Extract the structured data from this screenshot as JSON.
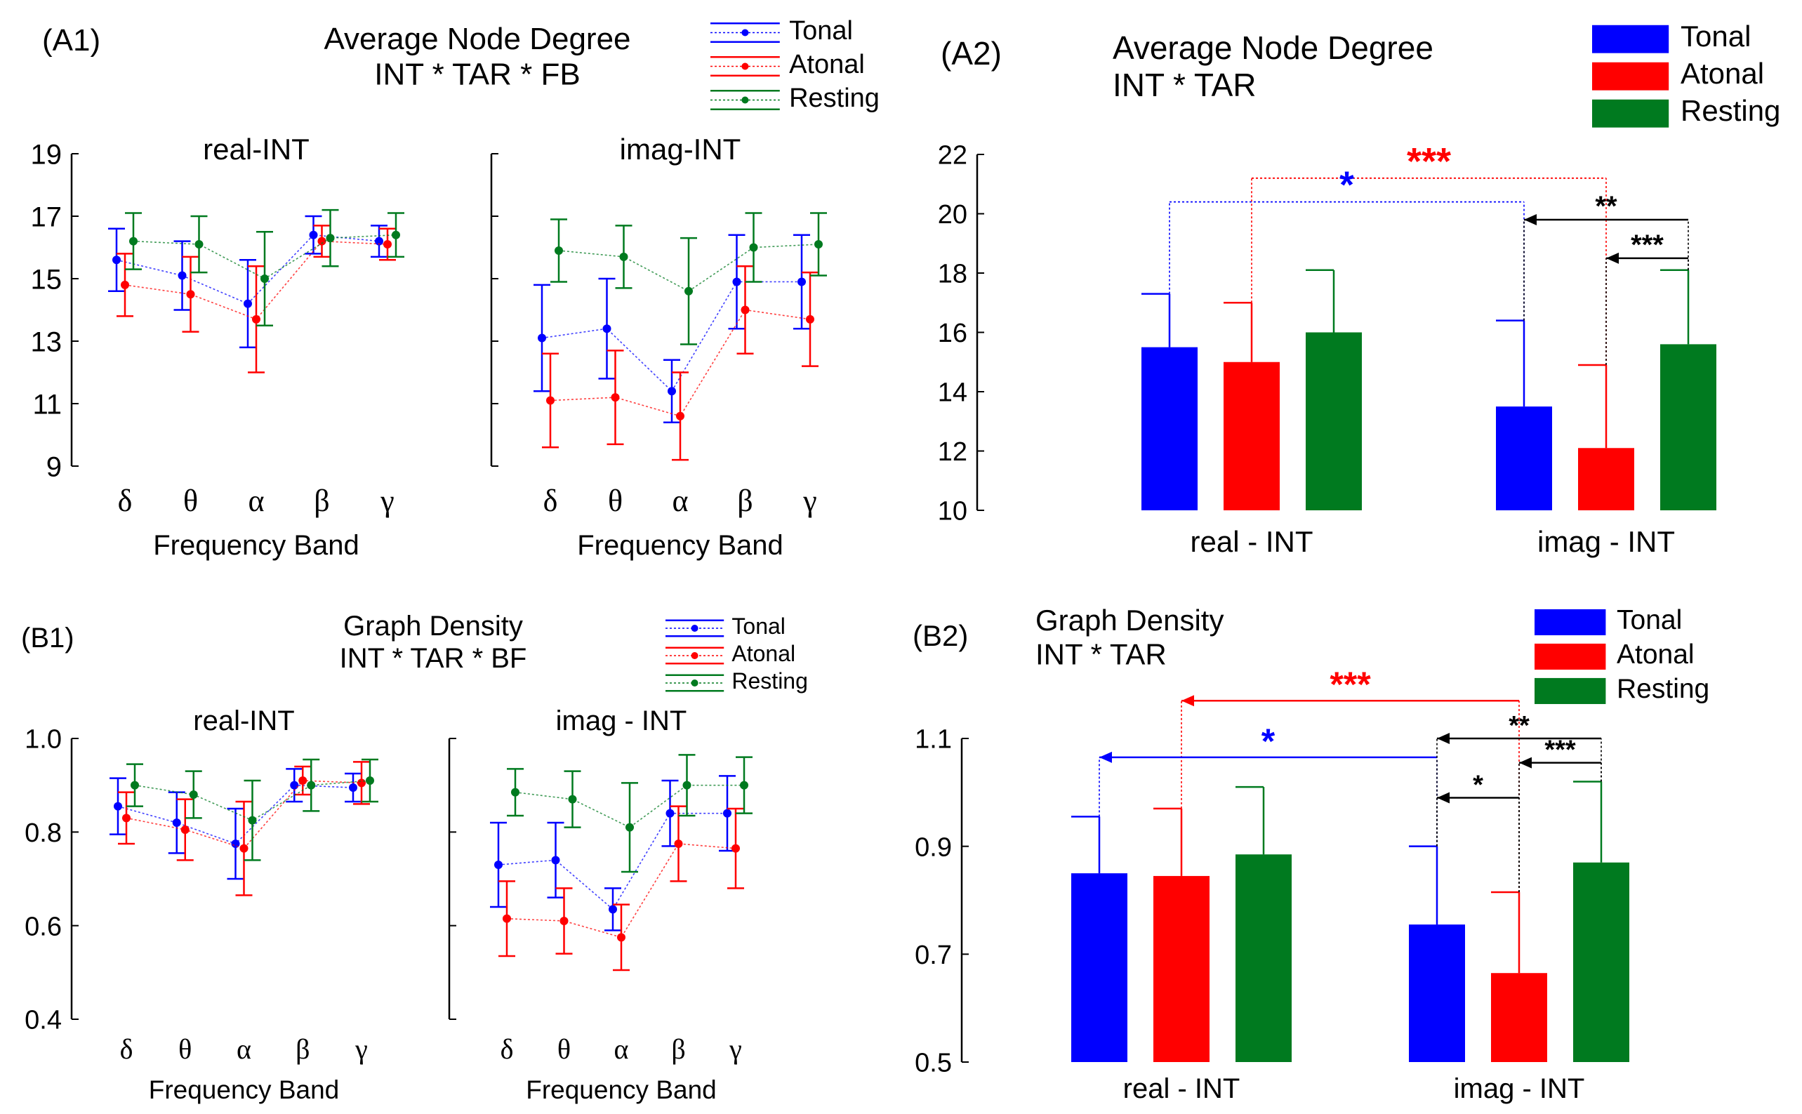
{
  "colors": {
    "tonal": "#0000ff",
    "atonal": "#ff0000",
    "resting": "#007a1f",
    "axis": "#000000"
  },
  "chart_data": [
    {
      "id": "A1",
      "type": "line",
      "panel_label": "(A1)",
      "title_lines": [
        "Average Node Degree",
        "INT * TAR * FB"
      ],
      "legend": [
        "Tonal",
        "Atonal",
        "Resting"
      ],
      "legend_placement": "top-right",
      "ylim": [
        9,
        19
      ],
      "yticks": [
        "19",
        "17",
        "15",
        "13",
        "11",
        "9"
      ],
      "grid": false,
      "subplots": [
        {
          "subtitle": "real-INT",
          "xlabel": "Frequency Band",
          "categories": [
            "δ",
            "θ",
            "α",
            "β",
            "γ"
          ],
          "series": [
            {
              "name": "Tonal",
              "values": [
                15.6,
                15.1,
                14.2,
                16.4,
                16.2
              ],
              "err": [
                1.0,
                1.1,
                1.4,
                0.6,
                0.5
              ]
            },
            {
              "name": "Atonal",
              "values": [
                14.8,
                14.5,
                13.7,
                16.2,
                16.1
              ],
              "err": [
                1.0,
                1.2,
                1.7,
                0.5,
                0.5
              ]
            },
            {
              "name": "Resting",
              "values": [
                16.2,
                16.1,
                15.0,
                16.3,
                16.4
              ],
              "err": [
                0.9,
                0.9,
                1.5,
                0.9,
                0.7
              ]
            }
          ]
        },
        {
          "subtitle": "imag-INT",
          "xlabel": "Frequency Band",
          "categories": [
            "δ",
            "θ",
            "α",
            "β",
            "γ"
          ],
          "series": [
            {
              "name": "Tonal",
              "values": [
                13.1,
                13.4,
                11.4,
                14.9,
                14.9
              ],
              "err": [
                1.7,
                1.6,
                1.0,
                1.5,
                1.5
              ]
            },
            {
              "name": "Atonal",
              "values": [
                11.1,
                11.2,
                10.6,
                14.0,
                13.7
              ],
              "err": [
                1.5,
                1.5,
                1.4,
                1.4,
                1.5
              ]
            },
            {
              "name": "Resting",
              "values": [
                15.9,
                15.7,
                14.6,
                16.0,
                16.1
              ],
              "err": [
                1.0,
                1.0,
                1.7,
                1.1,
                1.0
              ]
            }
          ]
        }
      ]
    },
    {
      "id": "A2",
      "type": "bar",
      "panel_label": "(A2)",
      "title_lines": [
        "Average Node Degree",
        "INT * TAR"
      ],
      "legend": [
        "Tonal",
        "Atonal",
        "Resting"
      ],
      "legend_placement": "top-right",
      "categories": [
        "real - INT",
        "imag - INT"
      ],
      "ylim": [
        10,
        22
      ],
      "yticks": [
        "22",
        "20",
        "18",
        "16",
        "14",
        "12",
        "10"
      ],
      "grid": false,
      "series": [
        {
          "name": "Tonal",
          "values": [
            15.5,
            13.5
          ],
          "err": [
            1.8,
            2.9
          ]
        },
        {
          "name": "Atonal",
          "values": [
            15.0,
            12.1
          ],
          "err": [
            2.0,
            2.8
          ]
        },
        {
          "name": "Resting",
          "values": [
            16.0,
            15.6
          ],
          "err": [
            2.1,
            2.5
          ]
        }
      ],
      "annotations": [
        {
          "text": "***",
          "color": "atonal",
          "from": [
            0,
            1
          ],
          "to": [
            1,
            1
          ],
          "y": 21.2,
          "style": "bracket"
        },
        {
          "text": "*",
          "color": "tonal",
          "from": [
            0,
            0
          ],
          "to": [
            1,
            0
          ],
          "y": 20.4,
          "style": "bracket"
        },
        {
          "text": "**",
          "color": "black",
          "from": [
            1,
            2
          ],
          "to": [
            1,
            0
          ],
          "y": 19.8,
          "style": "arrow"
        },
        {
          "text": "***",
          "color": "black",
          "from": [
            1,
            2
          ],
          "to": [
            1,
            1
          ],
          "y": 18.5,
          "style": "arrow"
        }
      ]
    },
    {
      "id": "B1",
      "type": "line",
      "panel_label": "(B1)",
      "title_lines": [
        "Graph Density",
        "INT * TAR * BF"
      ],
      "legend": [
        "Tonal",
        "Atonal",
        "Resting"
      ],
      "legend_placement": "top-right",
      "ylim": [
        0.4,
        1.0
      ],
      "yticks": [
        "1.0",
        "0.8",
        "0.6",
        "0.4"
      ],
      "grid": false,
      "subplots": [
        {
          "subtitle": "real-INT",
          "xlabel": "Frequency Band",
          "categories": [
            "δ",
            "θ",
            "α",
            "β",
            "γ"
          ],
          "series": [
            {
              "name": "Tonal",
              "values": [
                0.855,
                0.82,
                0.775,
                0.9,
                0.895
              ],
              "err": [
                0.06,
                0.065,
                0.075,
                0.035,
                0.03
              ]
            },
            {
              "name": "Atonal",
              "values": [
                0.83,
                0.805,
                0.765,
                0.91,
                0.905
              ],
              "err": [
                0.055,
                0.065,
                0.1,
                0.03,
                0.045
              ]
            },
            {
              "name": "Resting",
              "values": [
                0.9,
                0.88,
                0.825,
                0.9,
                0.91
              ],
              "err": [
                0.045,
                0.05,
                0.085,
                0.055,
                0.045
              ]
            }
          ]
        },
        {
          "subtitle": "imag - INT",
          "xlabel": "Frequency Band",
          "categories": [
            "δ",
            "θ",
            "α",
            "β",
            "γ"
          ],
          "series": [
            {
              "name": "Tonal",
              "values": [
                0.73,
                0.74,
                0.635,
                0.84,
                0.84
              ],
              "err": [
                0.09,
                0.08,
                0.045,
                0.07,
                0.08
              ]
            },
            {
              "name": "Atonal",
              "values": [
                0.615,
                0.61,
                0.575,
                0.775,
                0.765
              ],
              "err": [
                0.08,
                0.07,
                0.07,
                0.08,
                0.085
              ]
            },
            {
              "name": "Resting",
              "values": [
                0.885,
                0.87,
                0.81,
                0.9,
                0.9
              ],
              "err": [
                0.05,
                0.06,
                0.095,
                0.065,
                0.06
              ]
            }
          ]
        }
      ]
    },
    {
      "id": "B2",
      "type": "bar",
      "panel_label": "(B2)",
      "title_lines": [
        "Graph Density",
        "INT * TAR"
      ],
      "legend": [
        "Tonal",
        "Atonal",
        "Resting"
      ],
      "legend_placement": "top-right",
      "categories": [
        "real - INT",
        "imag - INT"
      ],
      "ylim": [
        0.5,
        1.1
      ],
      "yticks": [
        "1.1",
        "0.9",
        "0.7",
        "0.5"
      ],
      "grid": false,
      "series": [
        {
          "name": "Tonal",
          "values": [
            0.85,
            0.755
          ],
          "err": [
            0.105,
            0.145
          ]
        },
        {
          "name": "Atonal",
          "values": [
            0.845,
            0.665
          ],
          "err": [
            0.125,
            0.15
          ]
        },
        {
          "name": "Resting",
          "values": [
            0.885,
            0.87
          ],
          "err": [
            0.125,
            0.15
          ]
        }
      ],
      "annotations": [
        {
          "text": "***",
          "color": "atonal",
          "from": [
            1,
            1
          ],
          "to": [
            0,
            1
          ],
          "y": 1.17,
          "style": "arrow"
        },
        {
          "text": "*",
          "color": "tonal",
          "from": [
            1,
            0
          ],
          "to": [
            0,
            0
          ],
          "y": 1.065,
          "style": "arrow"
        },
        {
          "text": "**",
          "color": "black",
          "from": [
            1,
            2
          ],
          "to": [
            1,
            0
          ],
          "y": 1.1,
          "style": "arrow"
        },
        {
          "text": "***",
          "color": "black",
          "from": [
            1,
            2
          ],
          "to": [
            1,
            1
          ],
          "y": 1.055,
          "style": "arrow"
        },
        {
          "text": "*",
          "color": "black",
          "from": [
            1,
            1
          ],
          "to": [
            1,
            0
          ],
          "y": 0.99,
          "style": "arrow"
        }
      ]
    }
  ]
}
